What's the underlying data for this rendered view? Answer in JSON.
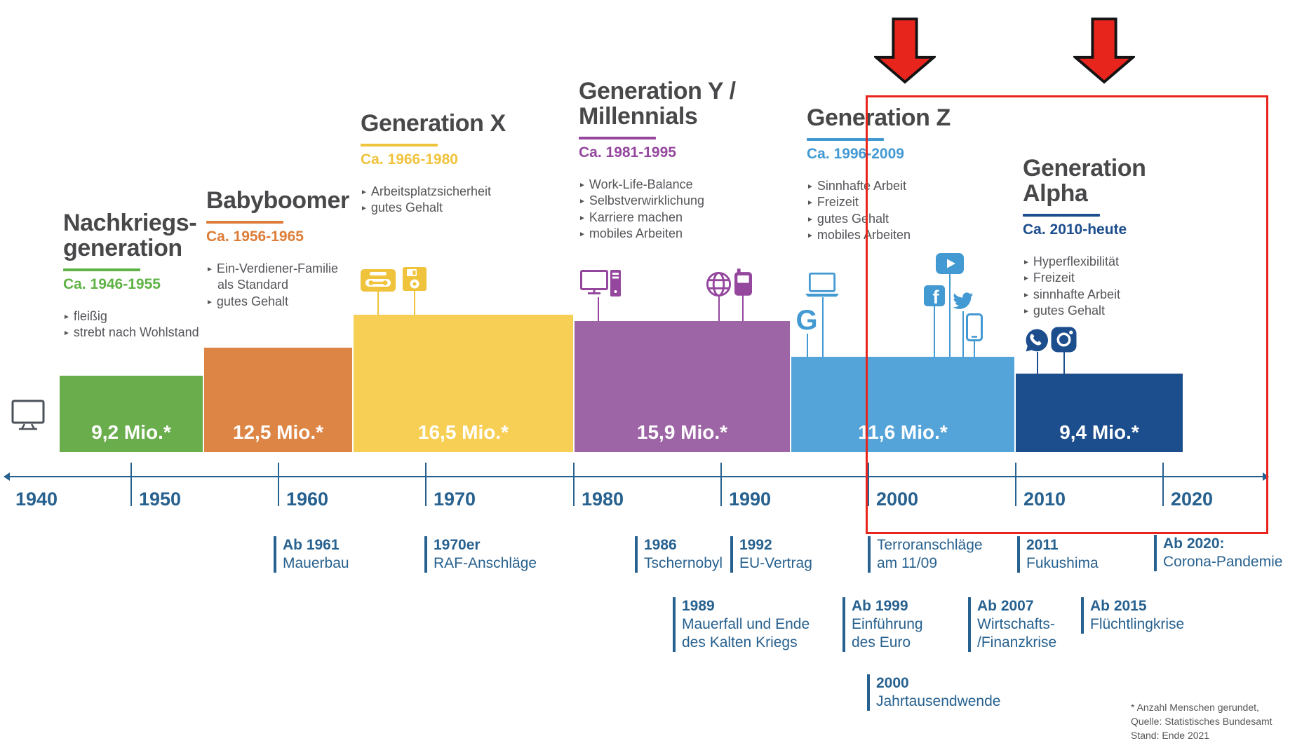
{
  "generations": [
    {
      "id": "nachkriegsgeneration",
      "title_lines": [
        "Nachkriegs-",
        "generation"
      ],
      "period": "Ca. 1946-1955",
      "traits": [
        "fleißig",
        "strebt nach Wohlstand"
      ],
      "population": "9,2 Mio.*",
      "colors": {
        "bar": "#6aad4d",
        "accent": "#5fb346"
      },
      "icons": [
        "tv"
      ]
    },
    {
      "id": "babyboomer",
      "title_lines": [
        "Babyboomer"
      ],
      "period": "Ca. 1956-1965",
      "traits": [
        "Ein-Verdiener-Familie als Standard",
        "gutes Gehalt"
      ],
      "population": "12,5 Mio.*",
      "colors": {
        "bar": "#dd8544",
        "accent": "#dd7d38"
      },
      "icons": []
    },
    {
      "id": "generation-x",
      "title_lines": [
        "Generation X"
      ],
      "period": "Ca. 1966-1980",
      "traits": [
        "Arbeitsplatzsicherheit",
        "gutes Gehalt"
      ],
      "population": "16,5 Mio.*",
      "colors": {
        "bar": "#f7cf55",
        "accent": "#f0c33c"
      },
      "icons": [
        "cassette",
        "floppy-disk"
      ]
    },
    {
      "id": "generation-y",
      "title_lines": [
        "Generation Y /",
        "Millennials"
      ],
      "period": "Ca. 1981-1995",
      "traits": [
        "Work-Life-Balance",
        "Selbstverwirklichung",
        "Karriere machen",
        "mobiles Arbeiten"
      ],
      "population": "15,9 Mio.*",
      "colors": {
        "bar": "#9d65a5",
        "accent": "#94479d"
      },
      "icons": [
        "desktop-computer",
        "globe",
        "mobile-phone"
      ]
    },
    {
      "id": "generation-z",
      "title_lines": [
        "Generation Z"
      ],
      "period": "Ca. 1996-2009",
      "traits": [
        "Sinnhafte Arbeit",
        "Freizeit",
        "gutes Gehalt",
        "mobiles Arbeiten"
      ],
      "population": "11,6 Mio.*",
      "colors": {
        "bar": "#55a4d9",
        "accent": "#4399d2"
      },
      "icons": [
        "laptop",
        "google",
        "youtube",
        "facebook",
        "twitter",
        "smartphone"
      ]
    },
    {
      "id": "generation-alpha",
      "title_lines": [
        "Generation Alpha"
      ],
      "period": "Ca. 2010-heute",
      "traits": [
        "Hyperflexibilität",
        "Freizeit",
        "sinnhafte Arbeit",
        "gutes Gehalt"
      ],
      "population": "9,4 Mio.*",
      "colors": {
        "bar": "#1c4d8d",
        "accent": "#1c4d8d"
      },
      "icons": [
        "whatsapp",
        "instagram"
      ]
    }
  ],
  "timeline": {
    "years": [
      "1940",
      "1950",
      "1960",
      "1970",
      "1980",
      "1990",
      "2000",
      "2010",
      "2020"
    ],
    "color": "#27618f"
  },
  "events": [
    {
      "title": "Ab 1961",
      "bold": true,
      "lines": [
        "Mauerbau"
      ]
    },
    {
      "title": "1970er",
      "bold": true,
      "lines": [
        "RAF-Anschläge"
      ]
    },
    {
      "title": "1986",
      "bold": true,
      "lines": [
        "Tschernobyl"
      ]
    },
    {
      "title": "1992",
      "bold": true,
      "lines": [
        "EU-Vertrag"
      ]
    },
    {
      "title": "Terroranschläge",
      "bold": false,
      "lines": [
        "am 11/09"
      ]
    },
    {
      "title": "2011",
      "bold": true,
      "lines": [
        "Fukushima"
      ]
    },
    {
      "title": "Ab 2020:",
      "bold": true,
      "lines": [
        "Corona-Pandemie"
      ]
    },
    {
      "title": "1989",
      "bold": true,
      "lines": [
        "Mauerfall und Ende",
        "des Kalten Kriegs"
      ]
    },
    {
      "title": "Ab 1999",
      "bold": true,
      "lines": [
        "Einführung",
        "des Euro"
      ]
    },
    {
      "title": "Ab 2007",
      "bold": true,
      "lines": [
        "Wirtschafts-",
        "/Finanzkrise"
      ]
    },
    {
      "title": "Ab 2015",
      "bold": true,
      "lines": [
        "Flüchtlingkrise"
      ]
    },
    {
      "title": "2000",
      "bold": true,
      "lines": [
        "Jahrtausendwende"
      ]
    }
  ],
  "footnote": {
    "lines": [
      "* Anzahl Menschen gerundet,",
      "Quelle: Statistisches Bundesamt",
      "Stand: Ende 2021"
    ]
  },
  "annotation_color": "#e8251c"
}
